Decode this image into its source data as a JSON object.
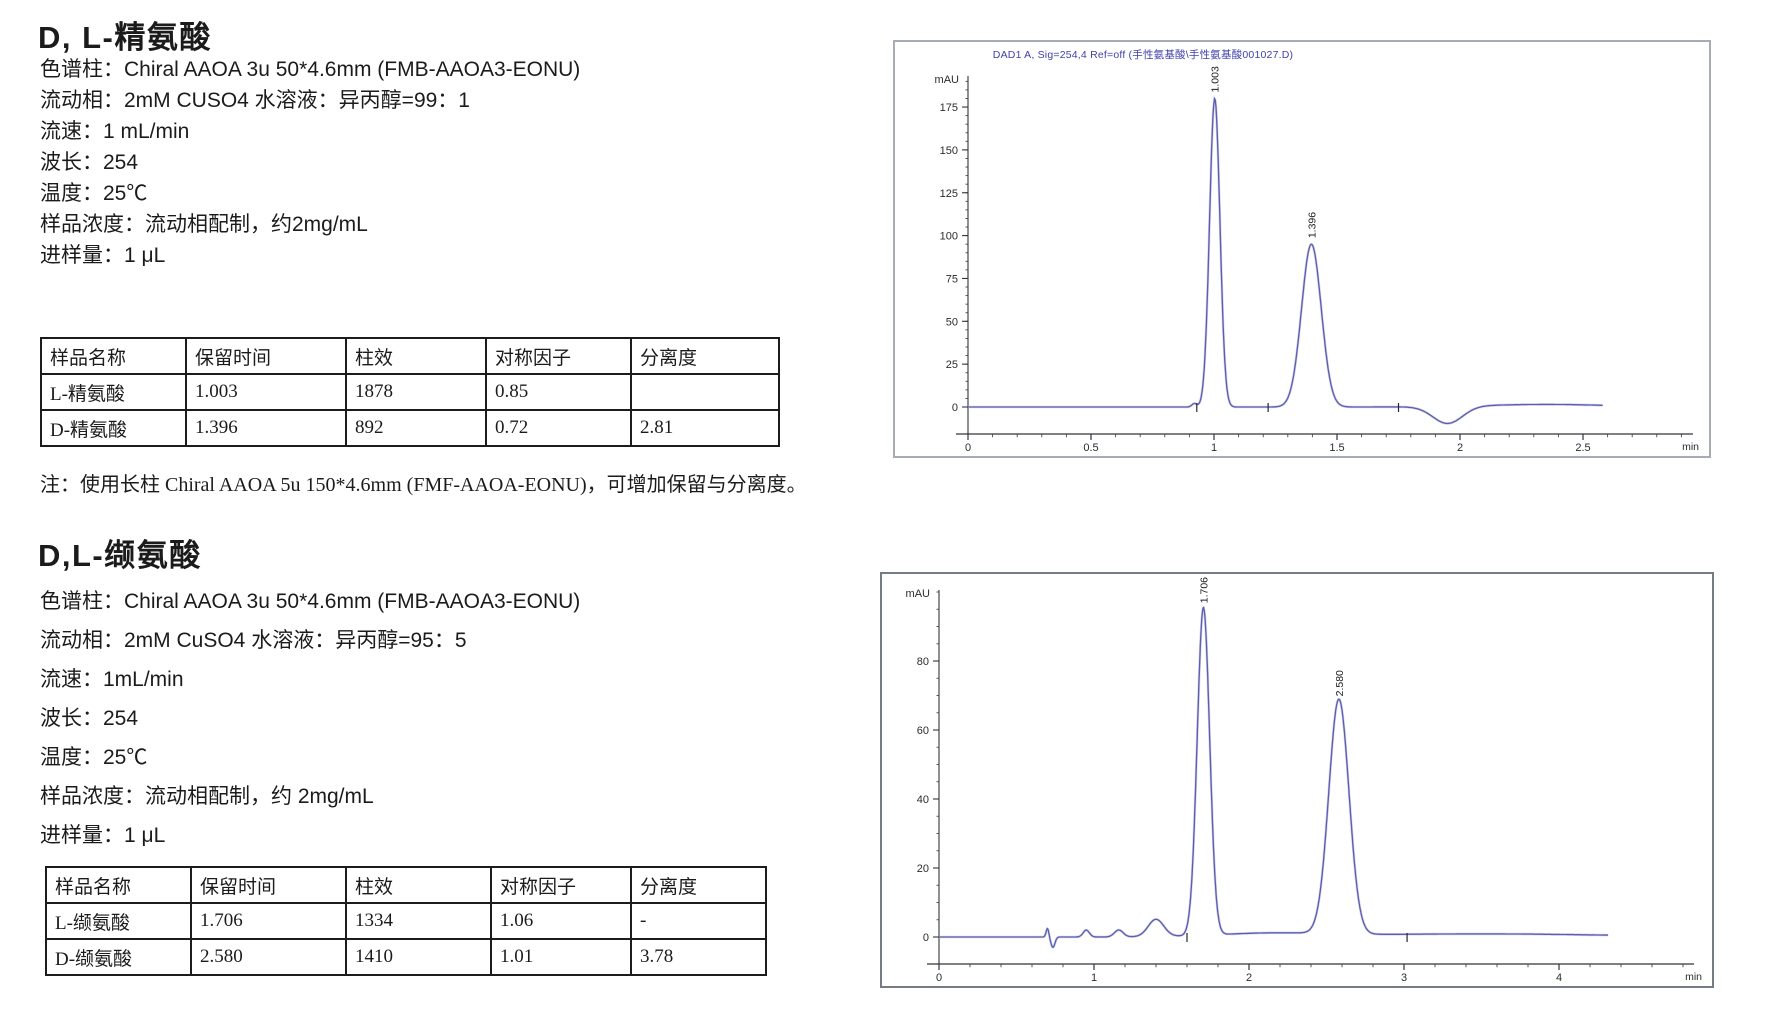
{
  "page": {
    "background": "#ffffff"
  },
  "section1": {
    "title": "D, L-精氨酸",
    "params": [
      "色谱柱：Chiral AAOA 3u 50*4.6mm (FMB-AAOA3-EONU)",
      "流动相：2mM CUSO4 水溶液：异丙醇=99：1",
      "流速：1 mL/min",
      "波长：254",
      "温度：25℃",
      "样品浓度：流动相配制，约2mg/mL",
      "进样量：1 μL"
    ],
    "table": {
      "headers": [
        "样品名称",
        "保留时间",
        "柱效",
        "对称因子",
        "分离度"
      ],
      "rows": [
        [
          "L-精氨酸",
          "1.003",
          "1878",
          "0.85",
          ""
        ],
        [
          "D-精氨酸",
          "1.396",
          "892",
          "0.72",
          "2.81"
        ]
      ]
    },
    "note": "注：使用长柱 Chiral AAOA 5u 150*4.6mm (FMF-AAOA-EONU)，可增加保留与分离度。"
  },
  "section2": {
    "title": "D,L-缬氨酸",
    "params": [
      "色谱柱：Chiral AAOA 3u 50*4.6mm (FMB-AAOA3-EONU)",
      "流动相：2mM CuSO4 水溶液：异丙醇=95：5",
      "流速：1mL/min",
      "波长：254",
      "温度：25℃",
      "样品浓度：流动相配制，约 2mg/mL",
      "进样量：1 μL"
    ],
    "table": {
      "headers": [
        "样品名称",
        "保留时间",
        "柱效",
        "对称因子",
        "分离度"
      ],
      "rows": [
        [
          "L-缬氨酸",
          "1.706",
          "1334",
          "1.06",
          "-"
        ],
        [
          "D-缬氨酸",
          "2.580",
          "1410",
          "1.01",
          "3.78"
        ]
      ]
    }
  },
  "chart_data": [
    {
      "type": "line",
      "title": "DAD1 A, Sig=254,4 Ref=off (手性氨基酸\\手性氨基酸001027.D)",
      "y_unit_label": "mAU",
      "x_unit_label": "min",
      "x_ticks_labeled": [
        0,
        0.5,
        1,
        1.5,
        2,
        2.5
      ],
      "x_minor_step": 0.1,
      "y_ticks_labeled": [
        0,
        25,
        50,
        75,
        100,
        125,
        150,
        175
      ],
      "y_minor_step": 5,
      "xlim": [
        0,
        2.95
      ],
      "ylim": [
        -15,
        195
      ],
      "trace_end": 2.58,
      "peaks": [
        {
          "rt": 1.003,
          "height_mau": 180,
          "sigma": 0.021,
          "label": "1.003"
        },
        {
          "rt": 1.396,
          "height_mau": 95,
          "sigma": 0.04,
          "label": "1.396"
        }
      ],
      "features": [
        {
          "rt": 0.92,
          "height_mau": 2,
          "sigma": 0.01
        },
        {
          "rt": 1.95,
          "height_mau": -10,
          "sigma": 0.06
        },
        {
          "rt": 2.35,
          "height_mau": 1.5,
          "sigma": 0.25
        }
      ],
      "integration_marks": [
        0.93,
        1.22,
        1.75
      ],
      "line_color": "#5d5fae",
      "title_color": "#3f3fae"
    },
    {
      "type": "line",
      "title": "",
      "y_unit_label": "mAU",
      "x_unit_label": "min",
      "x_ticks_labeled": [
        0,
        1,
        2,
        3,
        4
      ],
      "x_minor_step": 0.2,
      "y_ticks_labeled": [
        0,
        20,
        40,
        60,
        80
      ],
      "y_minor_step": 5,
      "xlim": [
        0,
        4.9
      ],
      "ylim": [
        -8,
        100
      ],
      "trace_end": 4.32,
      "peaks": [
        {
          "rt": 1.706,
          "height_mau": 95,
          "sigma": 0.04,
          "label": "1.706"
        },
        {
          "rt": 2.58,
          "height_mau": 68,
          "sigma": 0.065,
          "label": "2.580"
        }
      ],
      "features": [
        {
          "rt": 0.7,
          "height_mau": 2.5,
          "sigma": 0.009
        },
        {
          "rt": 0.735,
          "height_mau": -3,
          "sigma": 0.013
        },
        {
          "rt": 0.95,
          "height_mau": 2,
          "sigma": 0.02
        },
        {
          "rt": 1.16,
          "height_mau": 2,
          "sigma": 0.028
        },
        {
          "rt": 1.4,
          "height_mau": 5,
          "sigma": 0.05
        },
        {
          "rt": 2.15,
          "height_mau": 1,
          "sigma": 0.35
        },
        {
          "rt": 3.5,
          "height_mau": 0.9,
          "sigma": 0.8
        }
      ],
      "integration_marks": [
        1.6,
        3.02
      ],
      "line_color": "#5d5fae",
      "title_color": "#3f3fae"
    }
  ]
}
